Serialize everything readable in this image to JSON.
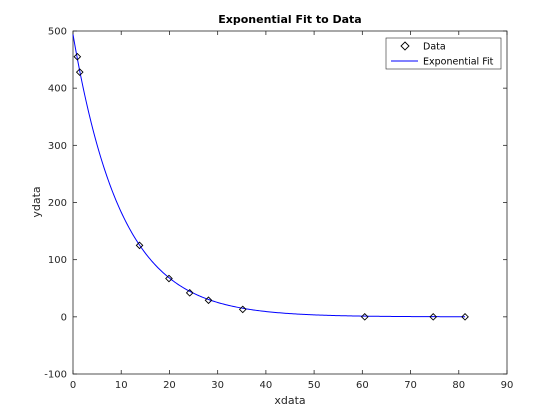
{
  "chart_data": {
    "type": "scatter",
    "title": "Exponential Fit to Data",
    "xlabel": "xdata",
    "ylabel": "ydata",
    "xlim": [
      0,
      90
    ],
    "ylim": [
      -100,
      500
    ],
    "xticks": [
      0,
      10,
      20,
      30,
      40,
      50,
      60,
      70,
      80,
      90
    ],
    "yticks": [
      -100,
      0,
      100,
      200,
      300,
      400,
      500
    ],
    "grid": false,
    "legend_position": "top-right",
    "series": [
      {
        "name": "Data",
        "kind": "markers",
        "marker": "diamond",
        "color": "#000000",
        "x": [
          0.9,
          1.4,
          13.8,
          19.9,
          24.2,
          28.1,
          35.2,
          60.5,
          74.7,
          81.3
        ],
        "y": [
          455,
          428,
          125,
          67,
          42,
          29,
          13,
          0,
          0,
          0
        ]
      },
      {
        "name": "Exponential Fit",
        "kind": "line",
        "color": "#0000ff",
        "model": {
          "amplitude": 494,
          "rate": 0.0993
        }
      }
    ]
  }
}
